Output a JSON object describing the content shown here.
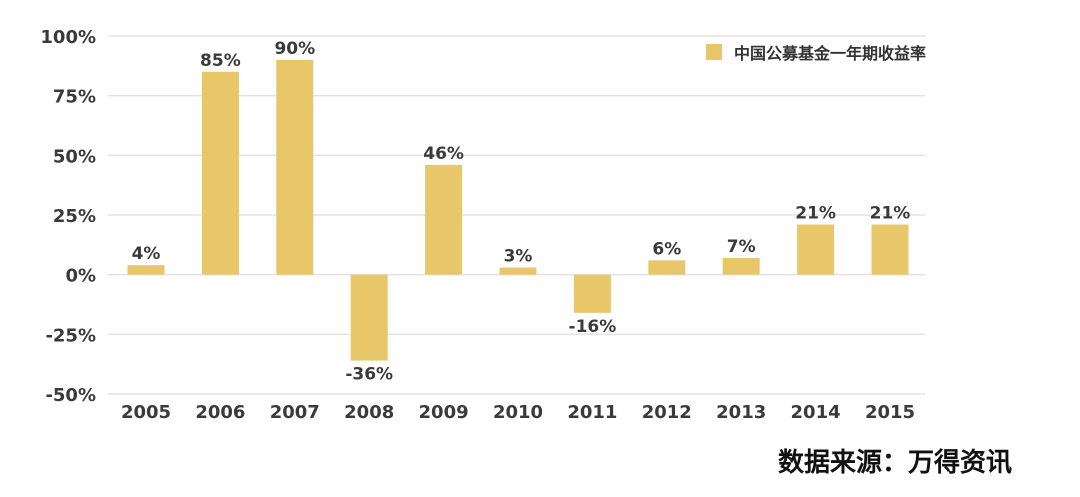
{
  "chart_data": {
    "type": "bar",
    "categories": [
      "2005",
      "2006",
      "2007",
      "2008",
      "2009",
      "2010",
      "2011",
      "2012",
      "2013",
      "2014",
      "2015"
    ],
    "series": [
      {
        "name": "中国公募基金一年期收益率",
        "values": [
          4,
          85,
          90,
          -36,
          46,
          3,
          -16,
          6,
          7,
          21,
          21
        ]
      }
    ],
    "data_labels": [
      "4%",
      "85%",
      "90%",
      "-36%",
      "46%",
      "3%",
      "-16%",
      "6%",
      "7%",
      "21%",
      "21%"
    ],
    "y_ticks": [
      "100%",
      "75%",
      "50%",
      "25%",
      "0%",
      "-25%",
      "-50%"
    ],
    "y_tick_values": [
      100,
      75,
      50,
      25,
      0,
      -25,
      -50
    ],
    "ylim": [
      -50,
      100
    ],
    "grid": true,
    "legend_position": "top-right",
    "bar_color": "#e8c76a",
    "grid_color": "#e3e3e3",
    "xlabel": "",
    "ylabel": ""
  },
  "source_note": "数据来源：万得资讯"
}
